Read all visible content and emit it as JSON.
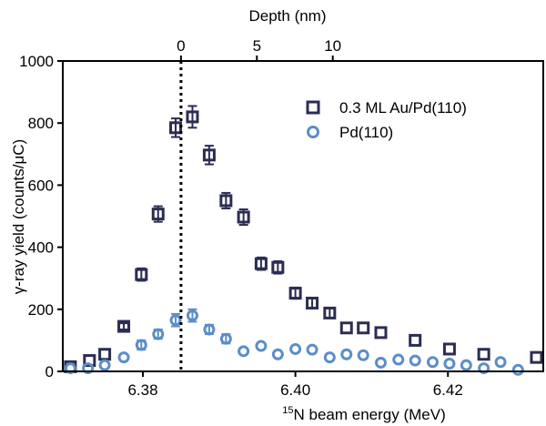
{
  "chart_data": {
    "type": "scatter",
    "title": "",
    "xlabel": {
      "superscript": "15",
      "text": "N beam energy (MeV)"
    },
    "ylabel": "γ-ray yield (counts/μC)",
    "x2label": "Depth (nm)",
    "xlim": [
      6.3695,
      6.4325
    ],
    "ylim": [
      0,
      1000
    ],
    "x_ticks": [
      {
        "value": 6.38,
        "label": "6.38"
      },
      {
        "value": 6.4,
        "label": "6.40"
      },
      {
        "value": 6.42,
        "label": "6.42"
      }
    ],
    "y_ticks": [
      {
        "value": 0,
        "label": "0"
      },
      {
        "value": 200,
        "label": "200"
      },
      {
        "value": 400,
        "label": "400"
      },
      {
        "value": 600,
        "label": "600"
      },
      {
        "value": 800,
        "label": "800"
      },
      {
        "value": 1000,
        "label": "1000"
      }
    ],
    "x2_ticks": [
      {
        "value": 0,
        "label": "0"
      },
      {
        "value": 5,
        "label": "5"
      },
      {
        "value": 10,
        "label": "10"
      }
    ],
    "depth_zero_energy": 6.385,
    "depth_per_mev": 502.5,
    "reference_line": {
      "x": 6.385,
      "style": "dotted"
    },
    "grid": false,
    "legend_position": "top-right",
    "series": [
      {
        "name": "0.3 ML Au/Pd(110)",
        "marker": "square",
        "color": "#2b2d52",
        "x": [
          6.3705,
          6.373,
          6.375,
          6.3775,
          6.3798,
          6.382,
          6.3843,
          6.3865,
          6.3887,
          6.3909,
          6.3932,
          6.3955,
          6.3977,
          6.4,
          6.4022,
          6.4045,
          6.4067,
          6.4089,
          6.4112,
          6.4157,
          6.4202,
          6.4247,
          6.4316
        ],
        "y": [
          15,
          35,
          55,
          145,
          312,
          507,
          785,
          820,
          697,
          550,
          497,
          347,
          335,
          252,
          220,
          188,
          140,
          140,
          125,
          100,
          72,
          55,
          45
        ],
        "err": [
          0,
          0,
          0,
          10,
          20,
          25,
          30,
          35,
          30,
          25,
          25,
          20,
          20,
          18,
          15,
          15,
          0,
          0,
          0,
          0,
          0,
          0,
          0
        ]
      },
      {
        "name": "Pd(110)",
        "marker": "circle",
        "color": "#5b8ec7",
        "x": [
          6.3705,
          6.3728,
          6.375,
          6.3775,
          6.3798,
          6.382,
          6.3843,
          6.3865,
          6.3887,
          6.3909,
          6.3932,
          6.3955,
          6.3977,
          6.4,
          6.4022,
          6.4045,
          6.4067,
          6.4089,
          6.4112,
          6.4135,
          6.4157,
          6.418,
          6.4202,
          6.4224,
          6.4247,
          6.4269,
          6.4292
        ],
        "y": [
          10,
          10,
          20,
          45,
          85,
          120,
          165,
          180,
          135,
          105,
          65,
          82,
          55,
          72,
          70,
          45,
          55,
          52,
          28,
          38,
          35,
          30,
          25,
          20,
          10,
          30,
          5
        ],
        "err": [
          0,
          0,
          0,
          0,
          15,
          15,
          20,
          20,
          15,
          15,
          0,
          0,
          0,
          0,
          0,
          0,
          0,
          0,
          0,
          0,
          0,
          0,
          0,
          0,
          0,
          0,
          0
        ]
      }
    ]
  }
}
